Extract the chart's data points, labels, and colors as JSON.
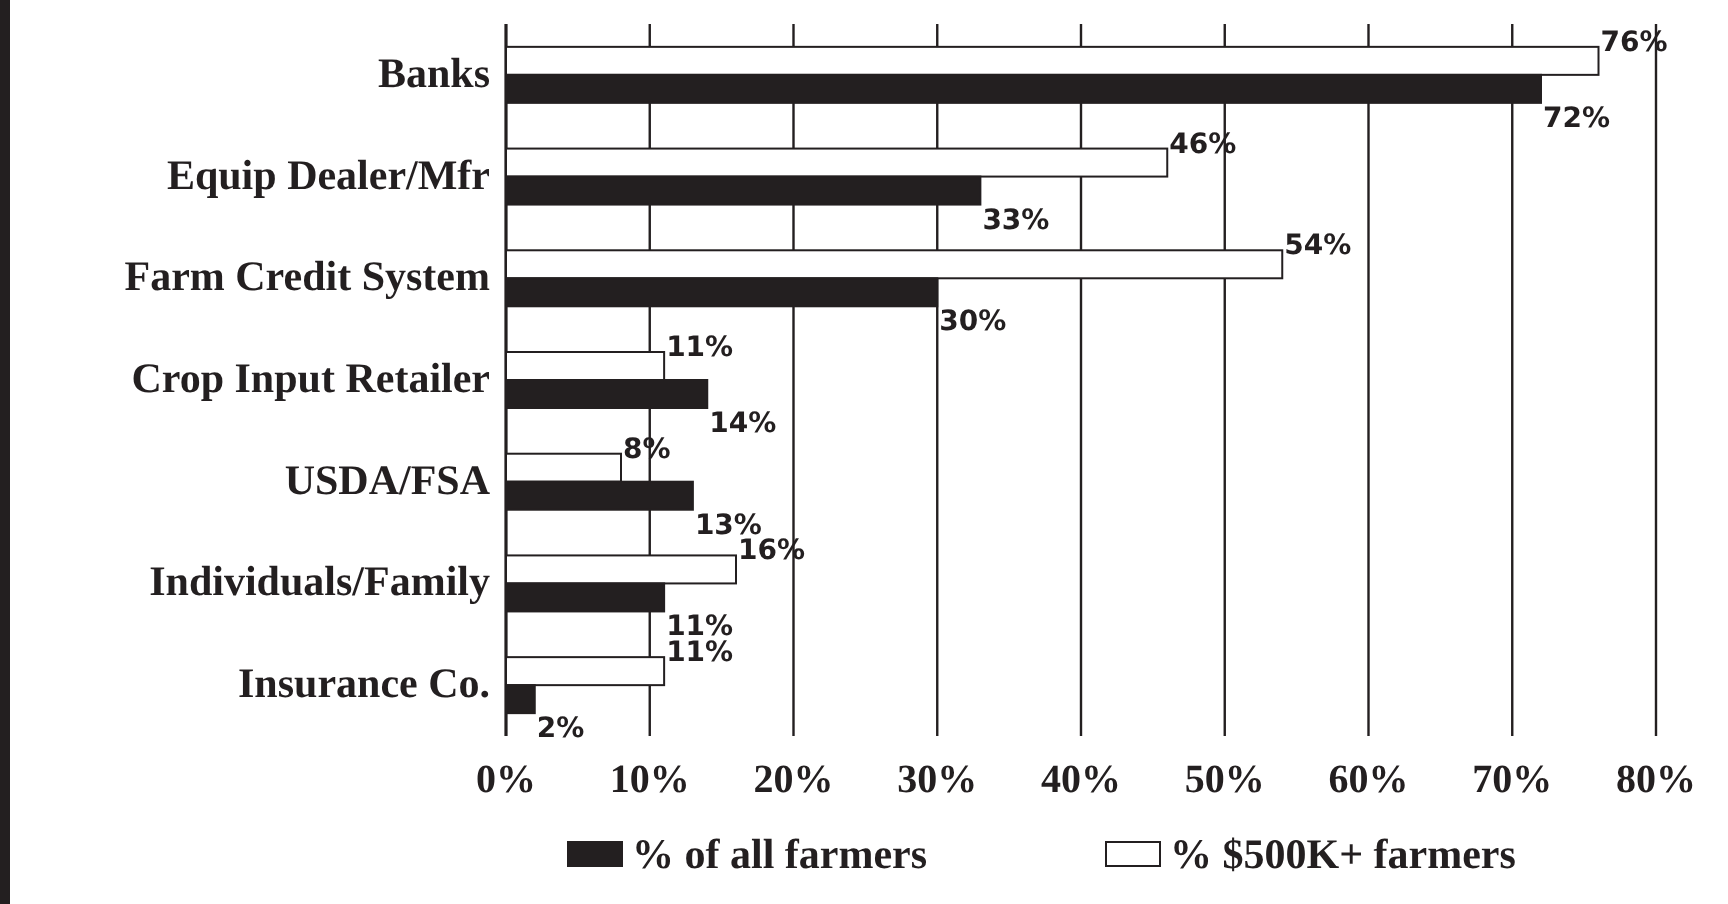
{
  "chart_data": {
    "type": "bar",
    "orientation": "horizontal",
    "categories": [
      "Banks",
      "Equip Dealer/Mfr",
      "Farm Credit System",
      "Crop Input Retailer",
      "USDA/FSA",
      "Individuals/Family",
      "Insurance Co."
    ],
    "series": [
      {
        "name": "% $500K+ farmers",
        "color": "#ffffff",
        "values": [
          76,
          46,
          54,
          11,
          8,
          16,
          11
        ],
        "value_labels": [
          "76%",
          "46%",
          "54%",
          "11%",
          "8%",
          "16%",
          "11%"
        ]
      },
      {
        "name": "% of all farmers",
        "color": "#231f20",
        "values": [
          72,
          33,
          30,
          14,
          13,
          11,
          2
        ],
        "value_labels": [
          "72%",
          "33%",
          "30%",
          "14%",
          "13%",
          "11%",
          "2%"
        ]
      }
    ],
    "xlim": [
      0,
      80
    ],
    "xticks": [
      {
        "value": 0,
        "label": "0%"
      },
      {
        "value": 10,
        "label": "10%"
      },
      {
        "value": 20,
        "label": "20%"
      },
      {
        "value": 30,
        "label": "30%"
      },
      {
        "value": 40,
        "label": "40%"
      },
      {
        "value": 50,
        "label": "50%"
      },
      {
        "value": 60,
        "label": "60%"
      },
      {
        "value": 70,
        "label": "70%"
      },
      {
        "value": 80,
        "label": "80%"
      }
    ],
    "grid": "x",
    "legend": "bottom"
  }
}
